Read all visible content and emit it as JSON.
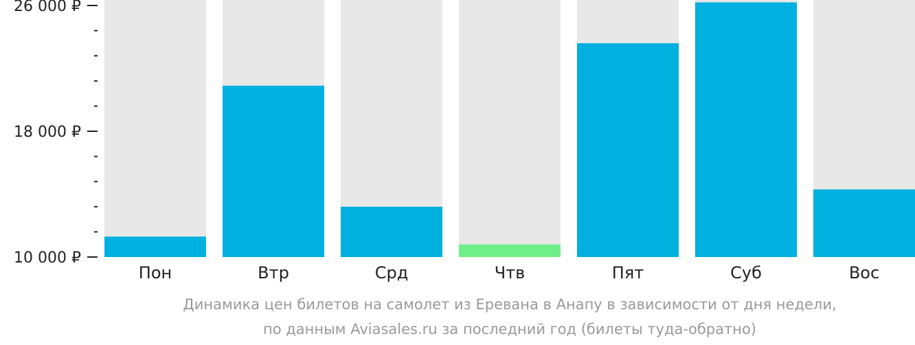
{
  "chart_data": {
    "type": "bar",
    "categories": [
      "Пон",
      "Втр",
      "Срд",
      "Чтв",
      "Пят",
      "Суб",
      "Вос"
    ],
    "values": [
      11300,
      20900,
      13200,
      10800,
      23600,
      26200,
      14300
    ],
    "ylim": [
      10000,
      26000
    ],
    "yticks_major": [
      10000,
      18000,
      26000
    ],
    "ytick_labels": [
      "10 000 ₽",
      "18 000 ₽",
      "26 000 ₽"
    ],
    "minor_tick_step": 1600,
    "highlight_index": 3,
    "colors": {
      "bar": "#00b0de",
      "highlight": "#6ff08a",
      "background_column": "#e8e8e8",
      "tick": "#222222",
      "caption": "#999999"
    },
    "caption": [
      "Динамика цен билетов на самолет из Еревана в Анапу в зависимости от дня недели,",
      "по данным Aviasales.ru за последний год (билеты туда-обратно)"
    ]
  }
}
